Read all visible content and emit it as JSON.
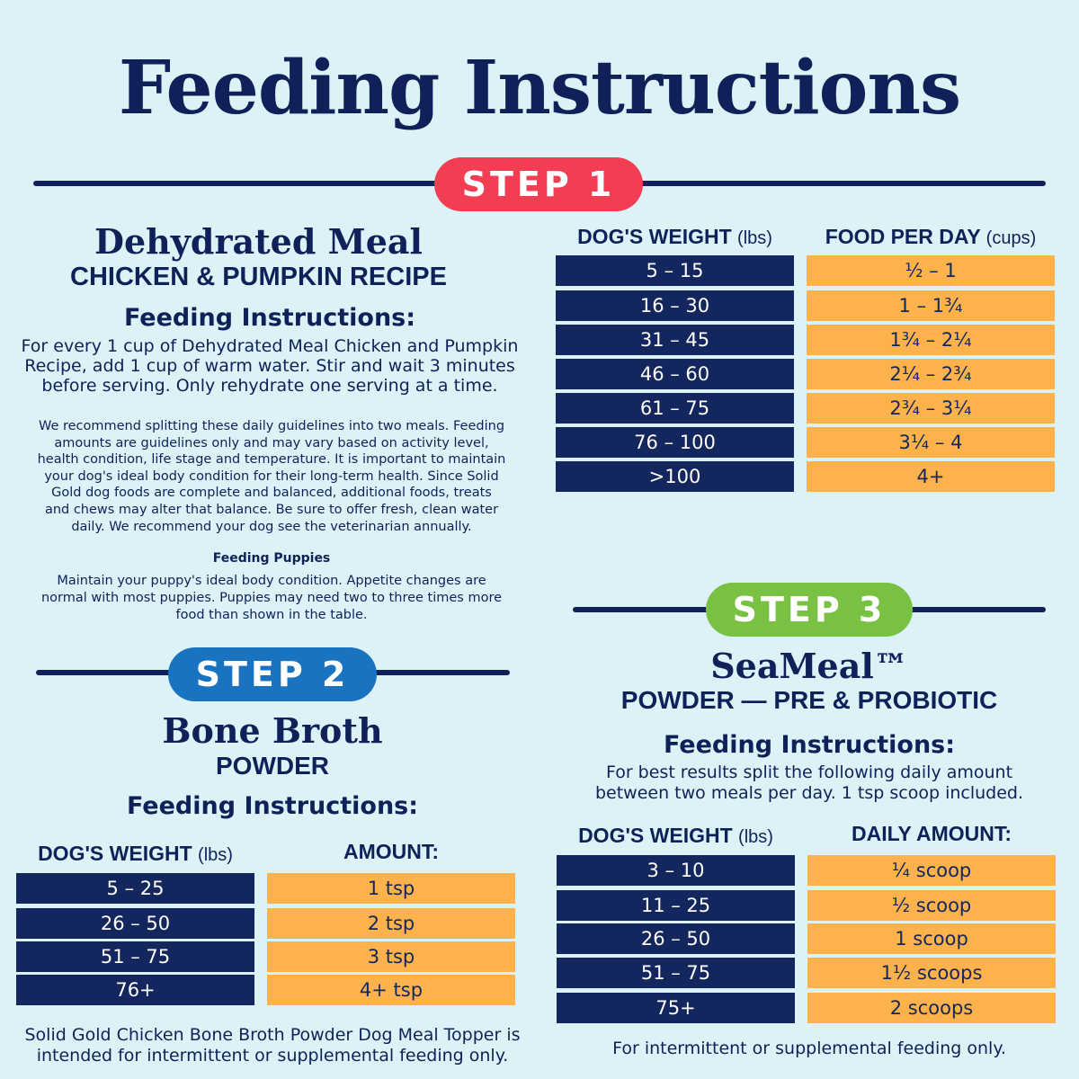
{
  "title": "Feeding Instructions",
  "step1": {
    "badge": "STEP 1",
    "product": "Dehydrated Meal",
    "recipe": "CHICKEN & PUMPKIN RECIPE",
    "feeding_heading": "Feeding Instructions:",
    "instructions_lines": [
      "For every 1 cup of Dehydrated Meal Chicken and Pumpkin",
      "Recipe, add 1 cup of warm water. Stir and wait 3 minutes",
      "before serving. Only rehydrate one serving at a time."
    ],
    "recommendation_lines": [
      "We recommend splitting these daily guidelines into two meals. Feeding",
      "amounts are guidelines only and may vary based on activity level,",
      "health condition, life stage and temperature. It is important to maintain",
      "your dog's ideal body condition for their long-term health. Since Solid",
      "Gold dog foods are complete and balanced, additional foods, treats",
      "and chews may alter that balance. Be sure to offer fresh, clean water",
      "daily. We recommend your dog see the veterinarian annually."
    ],
    "puppies_heading": "Feeding Puppies",
    "puppies_lines": [
      "Maintain your puppy's ideal body condition. Appetite changes are",
      "normal with most puppies. Puppies may need two to three times more",
      "food than shown in the table."
    ],
    "table": {
      "col1_label": "DOG'S WEIGHT",
      "col1_unit": "(lbs)",
      "col2_label": "FOOD PER DAY",
      "col2_unit": "(cups)",
      "weights": [
        "5 – 15",
        "16 – 30",
        "31 – 45",
        "46 – 60",
        "61 – 75",
        "76 – 100",
        ">100"
      ],
      "amounts": [
        "½ – 1",
        "1 – 1¾",
        "1¾ – 2¼",
        "2¼ – 2¾",
        "2¾ – 3¼",
        "3¼ – 4",
        "4+"
      ]
    }
  },
  "step2": {
    "badge": "STEP 2",
    "product": "Bone Broth",
    "subtitle": "POWDER",
    "feeding_heading": "Feeding Instructions:",
    "table": {
      "col1_label": "DOG'S WEIGHT",
      "col1_unit": "(lbs)",
      "col2_label": "AMOUNT:",
      "weights": [
        "5 – 25",
        "26 – 50",
        "51 – 75",
        "76+"
      ],
      "amounts": [
        "1 tsp",
        "2 tsp",
        "3 tsp",
        "4+ tsp"
      ]
    },
    "footer_lines": [
      "Solid Gold Chicken Bone Broth Powder Dog Meal Topper is",
      "intended for intermittent or supplemental feeding only."
    ]
  },
  "step3": {
    "badge": "STEP 3",
    "product": "SeaMeal™",
    "subtitle": "POWDER — PRE & PROBIOTIC",
    "feeding_heading": "Feeding Instructions:",
    "instructions_lines": [
      "For best results split the following daily amount",
      "between two meals per day. 1 tsp scoop included."
    ],
    "table": {
      "col1_label": "DOG'S WEIGHT",
      "col1_unit": "(lbs)",
      "col2_label": "DAILY AMOUNT:",
      "weights": [
        "3 – 10",
        "11 – 25",
        "26 – 50",
        "51 – 75",
        "75+"
      ],
      "amounts": [
        "¼ scoop",
        "½ scoop",
        "1 scoop",
        "1½ scoops",
        "2 scoops"
      ]
    },
    "footer": "For intermittent or supplemental feeding only."
  },
  "colors": {
    "navy": "#0f2158",
    "step1": "#f23d52",
    "step2": "#1973c0",
    "step3": "#78c142",
    "orange": "#fdb24b",
    "background": "#ddf2f6"
  }
}
